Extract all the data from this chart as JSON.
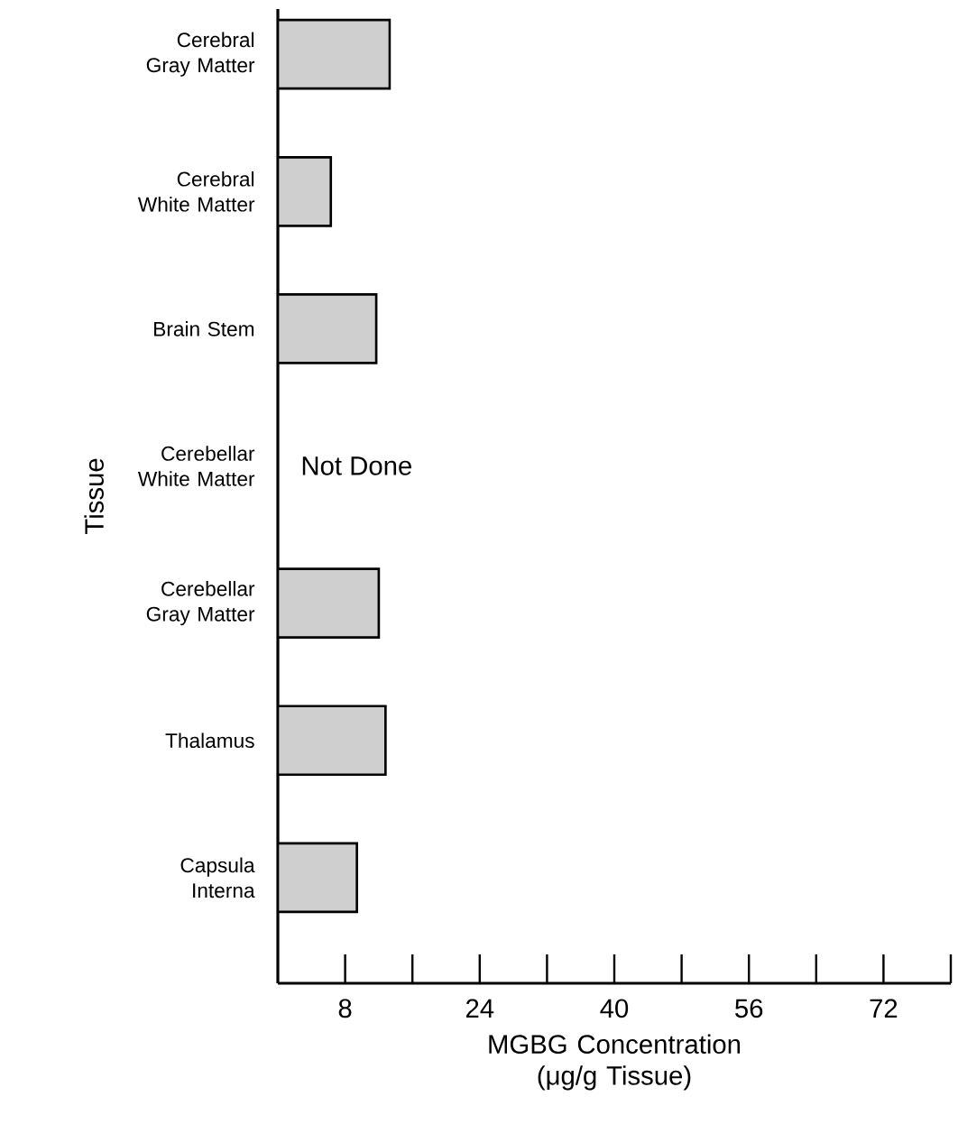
{
  "chart_data": {
    "type": "bar",
    "orientation": "horizontal",
    "xlabel": "MGBG Concentration (μg/g Tissue)",
    "ylabel": "Tissue",
    "categories": [
      "Cerebral Gray Matter",
      "Cerebral White Matter",
      "Brain Stem",
      "Cerebellar White Matter",
      "Cerebellar Gray Matter",
      "Thalamus",
      "Capsula Interna"
    ],
    "values": [
      13.3,
      6.3,
      11.7,
      null,
      12.0,
      12.8,
      9.4
    ],
    "color": "#cfcfcf",
    "xlim": [
      0,
      80
    ],
    "xticks": [
      {
        "value": 8,
        "label": "8"
      },
      {
        "value": 16,
        "label": null
      },
      {
        "value": 24,
        "label": "24"
      },
      {
        "value": 32,
        "label": null
      },
      {
        "value": 40,
        "label": "40"
      },
      {
        "value": 48,
        "label": null
      },
      {
        "value": 56,
        "label": "56"
      },
      {
        "value": 64,
        "label": null
      },
      {
        "value": 72,
        "label": "72"
      },
      {
        "value": 80,
        "label": null
      }
    ],
    "annotations": [
      "Not Done"
    ]
  }
}
